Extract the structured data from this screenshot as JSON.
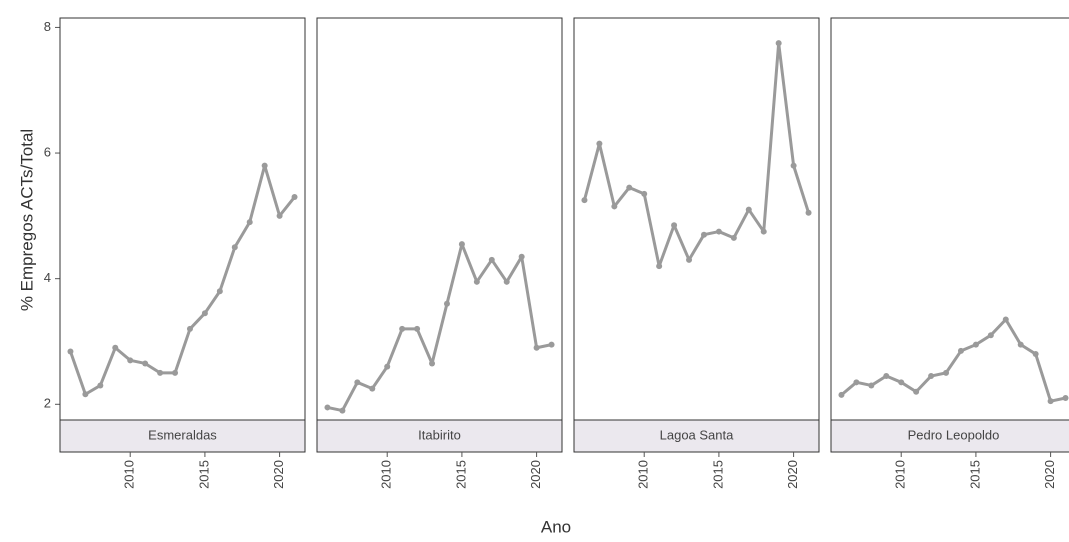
{
  "chart_data": {
    "type": "line",
    "y_label": "% Empregos ACTs/Total",
    "x_label": "Ano",
    "x": [
      2006,
      2007,
      2008,
      2009,
      2010,
      2011,
      2012,
      2013,
      2014,
      2015,
      2016,
      2017,
      2018,
      2019,
      2020,
      2021
    ],
    "series": [
      {
        "name": "Esmeraldas",
        "color": "#9a9a9a",
        "values": [
          2.84,
          2.16,
          2.3,
          2.9,
          2.7,
          2.65,
          2.5,
          2.5,
          3.2,
          3.45,
          3.8,
          4.5,
          4.9,
          5.8,
          5.0,
          5.3
        ]
      },
      {
        "name": "Itabirito",
        "color": "#9a9a9a",
        "values": [
          1.95,
          1.9,
          2.35,
          2.25,
          2.6,
          3.2,
          3.2,
          2.65,
          3.6,
          4.55,
          3.95,
          4.3,
          3.95,
          4.35,
          2.9,
          2.95
        ]
      },
      {
        "name": "Lagoa Santa",
        "color": "#9a9a9a",
        "values": [
          5.25,
          6.15,
          5.15,
          5.45,
          5.35,
          4.2,
          4.85,
          4.3,
          4.7,
          4.75,
          4.65,
          5.1,
          4.75,
          7.75,
          5.8,
          5.05
        ]
      },
      {
        "name": "Pedro Leopoldo",
        "color": "#9a9a9a",
        "values": [
          2.15,
          2.35,
          2.3,
          2.45,
          2.35,
          2.2,
          2.45,
          2.5,
          2.85,
          2.95,
          3.1,
          3.35,
          2.95,
          2.8,
          2.05,
          2.1
        ]
      }
    ],
    "xlim": [
      2005.3,
      2021.7
    ],
    "xticks": [
      2010,
      2015,
      2020
    ],
    "ylim": [
      1.75,
      8.15
    ],
    "yticks": [
      2,
      4,
      6,
      8
    ],
    "grid": false
  }
}
